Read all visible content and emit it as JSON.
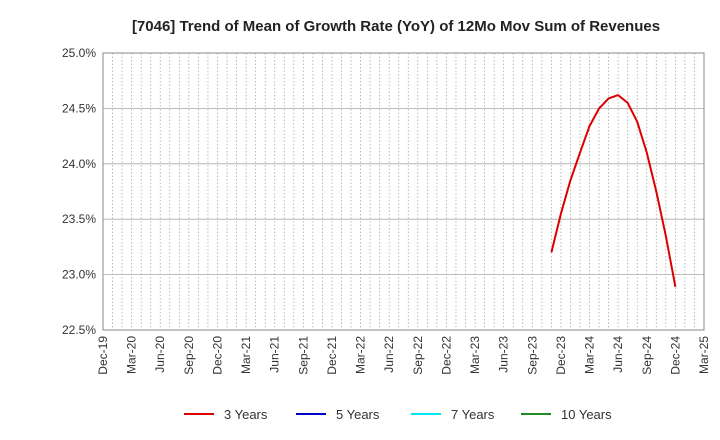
{
  "chart_data": {
    "type": "line",
    "title": "[7046]  Trend of Mean of Growth Rate (YoY) of 12Mo Mov Sum of Revenues",
    "xlabel": "",
    "ylabel": "",
    "x_tick_labels": [
      "Dec-19",
      "Mar-20",
      "Jun-20",
      "Sep-20",
      "Dec-20",
      "Mar-21",
      "Jun-21",
      "Sep-21",
      "Dec-21",
      "Mar-22",
      "Jun-22",
      "Sep-22",
      "Dec-22",
      "Mar-23",
      "Jun-23",
      "Sep-23",
      "Dec-23",
      "Mar-24",
      "Jun-24",
      "Sep-24",
      "Dec-24",
      "Mar-25"
    ],
    "x_range": [
      "2019-12",
      "2025-03"
    ],
    "ylim": [
      22.5,
      25.0
    ],
    "y_tick_values": [
      22.5,
      23.0,
      23.5,
      24.0,
      24.5,
      25.0
    ],
    "y_tick_labels": [
      "22.5%",
      "23.0%",
      "23.5%",
      "24.0%",
      "24.5%",
      "25.0%"
    ],
    "grid": {
      "vertical": "monthly dotted",
      "horizontal": "solid at ticks"
    },
    "legend_position": "bottom",
    "series": [
      {
        "name": "3 Years",
        "color": "#dd0000",
        "points": [
          {
            "x": "2023-11",
            "y": 23.2
          },
          {
            "x": "2023-12",
            "y": 23.55
          },
          {
            "x": "2024-01",
            "y": 23.85
          },
          {
            "x": "2024-02",
            "y": 24.1
          },
          {
            "x": "2024-03",
            "y": 24.34
          },
          {
            "x": "2024-04",
            "y": 24.5
          },
          {
            "x": "2024-05",
            "y": 24.59
          },
          {
            "x": "2024-06",
            "y": 24.62
          },
          {
            "x": "2024-07",
            "y": 24.55
          },
          {
            "x": "2024-08",
            "y": 24.38
          },
          {
            "x": "2024-09",
            "y": 24.1
          },
          {
            "x": "2024-10",
            "y": 23.75
          },
          {
            "x": "2024-11",
            "y": 23.35
          },
          {
            "x": "2024-12",
            "y": 22.89
          }
        ]
      },
      {
        "name": "5 Years",
        "color": "#0000cc",
        "points": []
      },
      {
        "name": "7 Years",
        "color": "#00e5ee",
        "points": []
      },
      {
        "name": "10 Years",
        "color": "#228b22",
        "points": []
      }
    ]
  }
}
